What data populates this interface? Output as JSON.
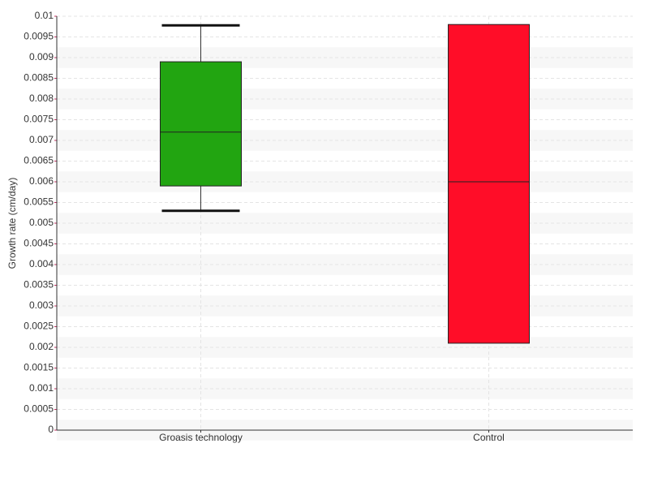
{
  "chart_data": {
    "type": "box",
    "ylabel": "Growth rate (cm/day)",
    "categories": [
      "Groasis technology",
      "Control"
    ],
    "boxes": [
      {
        "min": 0.0053,
        "q1": 0.0059,
        "median": 0.0072,
        "q3": 0.0089,
        "max": 0.00978,
        "color": "#22a511"
      },
      {
        "min": 0.0021,
        "q1": 0.0021,
        "median": 0.006,
        "q3": 0.0098,
        "max": 0.0098,
        "color": "#ff0d28"
      }
    ],
    "ylim": [
      0,
      0.01
    ],
    "yticks": [
      0,
      0.0005,
      0.001,
      0.0015,
      0.002,
      0.0025,
      0.003,
      0.0035,
      0.004,
      0.0045,
      0.005,
      0.0055,
      0.006,
      0.0065,
      0.007,
      0.0075,
      0.008,
      0.0085,
      0.009,
      0.0095,
      0.01
    ],
    "grid": true
  }
}
